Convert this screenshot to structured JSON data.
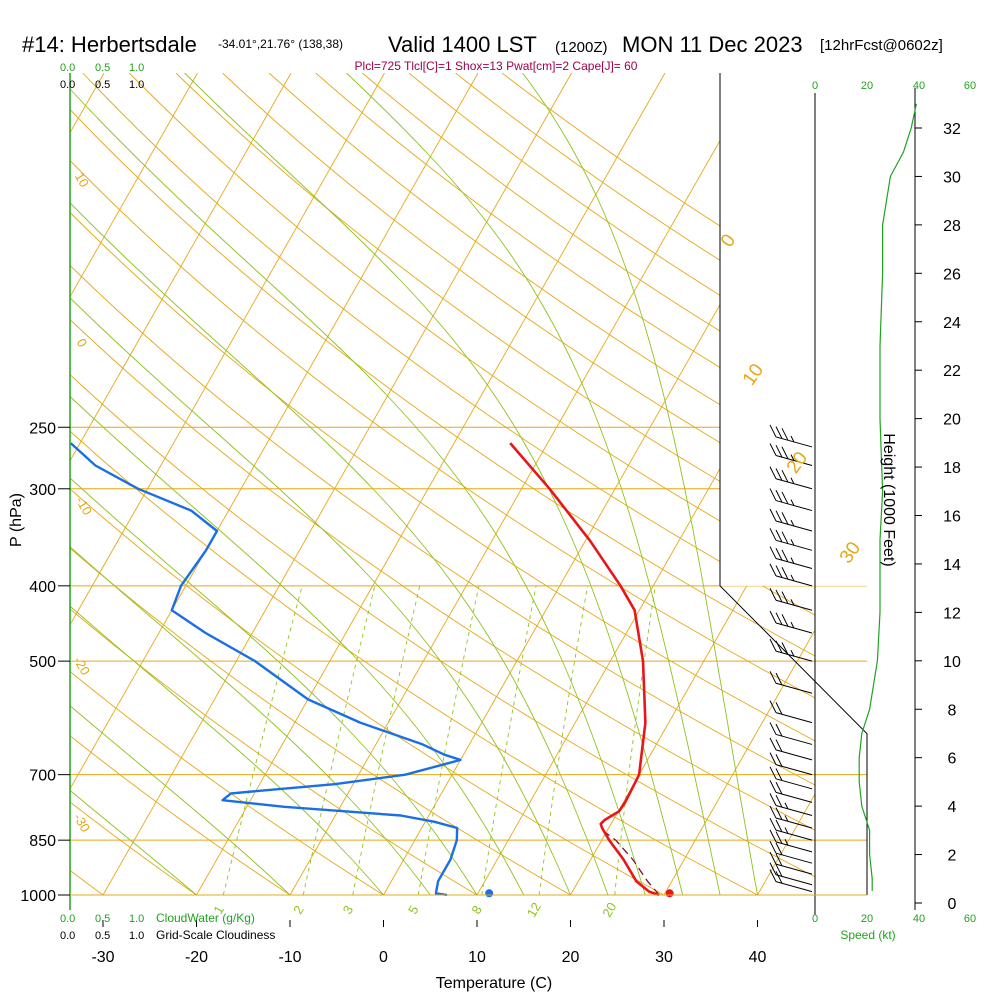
{
  "header": {
    "station": "#14: Herbertsdale",
    "location": "-34.01°,21.76° (138,38)",
    "valid": "Valid 1400 LST",
    "zulu": "(1200Z)",
    "date": "MON 11 Dec 2023",
    "forecast": "[12hrFcst@0602z]",
    "indices": "Plcl=725 Tlcl[C]=1 Shox=13 Pwat[cm]=2 Cape[J]= 60"
  },
  "colors": {
    "isotherm": "#e6a817",
    "dry_adiabat": "#e6a817",
    "moist_adiabat": "#8fc31f",
    "mixing_ratio": "#8fc31f",
    "temperature": "#e8161b",
    "dewpoint": "#1a6ee6",
    "parcel": "#7a1040",
    "speed": "#1fa31f",
    "indices_text": "#a0004e",
    "green_label": "#1fa31f"
  },
  "left_scales": {
    "top_cloudwater": [
      "0.0",
      "0.5",
      "1.0"
    ],
    "top_cloudiness": [
      "0.0",
      "0.5",
      "1.0"
    ],
    "bottom_cloudwater": [
      "0.0",
      "0.5",
      "1.0"
    ],
    "bottom_cloudwater_label": "CloudWater (g/Kg)",
    "bottom_cloudiness": [
      "0.0",
      "0.5",
      "1.0"
    ],
    "bottom_cloudiness_label": "Grid-Scale Cloudiness"
  },
  "speed_axis": {
    "ticks": [
      "0",
      "20",
      "40",
      "60"
    ],
    "label": "Speed (kt)"
  },
  "chart_data": {
    "type": "skew-t",
    "xlabel": "Temperature (C)",
    "ylabel": "P (hPa)",
    "y2label": "Height (1000 Feet)",
    "xticks": [
      -30,
      -20,
      -10,
      0,
      10,
      20,
      30,
      40
    ],
    "pressure_ticks": [
      250,
      300,
      400,
      500,
      700,
      850,
      1000
    ],
    "height_ticks": [
      0,
      2,
      4,
      6,
      8,
      10,
      12,
      14,
      16,
      18,
      20,
      22,
      24,
      26,
      28,
      30,
      32
    ],
    "mixing_ratio_labels": [
      "1",
      "2",
      "3",
      "5",
      "8",
      "12",
      "20"
    ],
    "theta_labels": [
      "10",
      "0",
      "-10",
      "-20",
      "-30"
    ],
    "thetae_labels": [
      "0",
      "10",
      "20",
      "30"
    ],
    "temperature": [
      {
        "p": 1000,
        "t": 29.5
      },
      {
        "p": 990,
        "t": 28.2
      },
      {
        "p": 960,
        "t": 26.2
      },
      {
        "p": 900,
        "t": 23.5
      },
      {
        "p": 850,
        "t": 20.8
      },
      {
        "p": 820,
        "t": 19.3
      },
      {
        "p": 810,
        "t": 18.9
      },
      {
        "p": 800,
        "t": 19.1
      },
      {
        "p": 780,
        "t": 20.1
      },
      {
        "p": 760,
        "t": 20.2
      },
      {
        "p": 700,
        "t": 20.0
      },
      {
        "p": 600,
        "t": 17.5
      },
      {
        "p": 500,
        "t": 13.5
      },
      {
        "p": 430,
        "t": 9.5
      },
      {
        "p": 400,
        "t": 6.5
      },
      {
        "p": 350,
        "t": 0.5
      },
      {
        "p": 300,
        "t": -7.0
      },
      {
        "p": 262,
        "t": -14.0
      }
    ],
    "dewpoint": [
      {
        "p": 1000,
        "t": 6.8
      },
      {
        "p": 995,
        "t": 5.5
      },
      {
        "p": 960,
        "t": 5.0
      },
      {
        "p": 900,
        "t": 5.0
      },
      {
        "p": 850,
        "t": 4.5
      },
      {
        "p": 820,
        "t": 3.8
      },
      {
        "p": 805,
        "t": 1.0
      },
      {
        "p": 790,
        "t": -3.0
      },
      {
        "p": 770,
        "t": -16.0
      },
      {
        "p": 755,
        "t": -23.0
      },
      {
        "p": 740,
        "t": -22.5
      },
      {
        "p": 720,
        "t": -12.0
      },
      {
        "p": 700,
        "t": -5.0
      },
      {
        "p": 670,
        "t": 0.0
      },
      {
        "p": 660,
        "t": -2.0
      },
      {
        "p": 640,
        "t": -5.0
      },
      {
        "p": 600,
        "t": -13.0
      },
      {
        "p": 560,
        "t": -20.0
      },
      {
        "p": 500,
        "t": -28.0
      },
      {
        "p": 460,
        "t": -35.0
      },
      {
        "p": 430,
        "t": -40.0
      },
      {
        "p": 400,
        "t": -40.5
      },
      {
        "p": 360,
        "t": -40.0
      },
      {
        "p": 340,
        "t": -40.0
      },
      {
        "p": 320,
        "t": -44.0
      },
      {
        "p": 300,
        "t": -51.0
      },
      {
        "p": 280,
        "t": -57.0
      },
      {
        "p": 262,
        "t": -61.0
      }
    ],
    "parcel": [
      {
        "p": 1000,
        "t": 29.5
      },
      {
        "p": 960,
        "t": 27.4
      },
      {
        "p": 900,
        "t": 24.5
      },
      {
        "p": 850,
        "t": 21.5
      },
      {
        "p": 820,
        "t": 19.0
      }
    ],
    "surface_temperature": 30.5,
    "surface_dewpoint": 11.2,
    "wind_speed_profile": [
      {
        "h": 0.5,
        "s": 22
      },
      {
        "h": 1,
        "s": 22
      },
      {
        "h": 2,
        "s": 21
      },
      {
        "h": 3,
        "s": 21
      },
      {
        "h": 4,
        "s": 18
      },
      {
        "h": 5,
        "s": 17
      },
      {
        "h": 6,
        "s": 17
      },
      {
        "h": 7,
        "s": 18
      },
      {
        "h": 8,
        "s": 21
      },
      {
        "h": 10,
        "s": 24
      },
      {
        "h": 12,
        "s": 25
      },
      {
        "h": 14,
        "s": 25
      },
      {
        "h": 15,
        "s": 25
      },
      {
        "h": 17,
        "s": 26
      },
      {
        "h": 20,
        "s": 25
      },
      {
        "h": 23,
        "s": 25
      },
      {
        "h": 26,
        "s": 26
      },
      {
        "h": 28,
        "s": 26
      },
      {
        "h": 30,
        "s": 29
      },
      {
        "h": 31,
        "s": 34
      },
      {
        "h": 32,
        "s": 37
      },
      {
        "h": 33,
        "s": 39
      }
    ],
    "wind_barbs": [
      {
        "p": 265,
        "s": 25
      },
      {
        "p": 280,
        "s": 25
      },
      {
        "p": 300,
        "s": 25
      },
      {
        "p": 320,
        "s": 25
      },
      {
        "p": 340,
        "s": 25
      },
      {
        "p": 360,
        "s": 25
      },
      {
        "p": 380,
        "s": 25
      },
      {
        "p": 400,
        "s": 25
      },
      {
        "p": 430,
        "s": 25
      },
      {
        "p": 460,
        "s": 25
      },
      {
        "p": 500,
        "s": 25
      },
      {
        "p": 550,
        "s": 20
      },
      {
        "p": 600,
        "s": 20
      },
      {
        "p": 640,
        "s": 20
      },
      {
        "p": 670,
        "s": 20
      },
      {
        "p": 700,
        "s": 20
      },
      {
        "p": 730,
        "s": 20
      },
      {
        "p": 760,
        "s": 20
      },
      {
        "p": 790,
        "s": 15
      },
      {
        "p": 820,
        "s": 15
      },
      {
        "p": 850,
        "s": 15
      },
      {
        "p": 880,
        "s": 15
      },
      {
        "p": 910,
        "s": 20
      },
      {
        "p": 940,
        "s": 20
      },
      {
        "p": 970,
        "s": 20
      },
      {
        "p": 990,
        "s": 20
      }
    ]
  }
}
